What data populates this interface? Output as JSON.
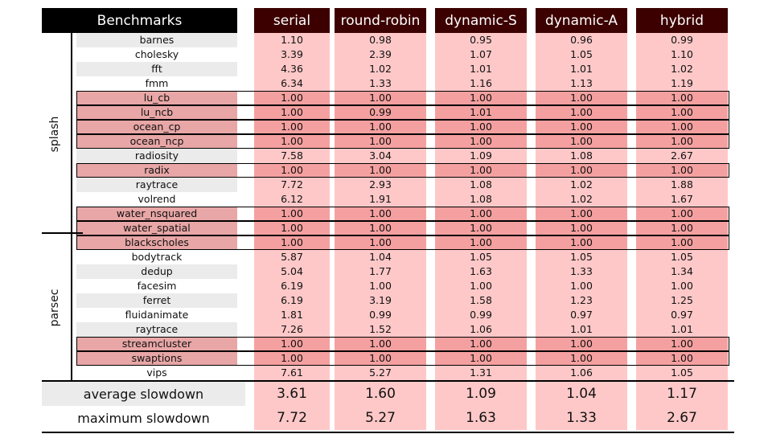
{
  "header": {
    "benchmarks": "Benchmarks",
    "columns": [
      "serial",
      "round-robin",
      "dynamic-S",
      "dynamic-A",
      "hybrid"
    ]
  },
  "groups": [
    {
      "label": "splash"
    },
    {
      "label": "parsec"
    }
  ],
  "rows": [
    {
      "name": "barnes",
      "values": [
        "1.10",
        "0.98",
        "0.95",
        "0.96",
        "0.99"
      ],
      "highlight": false
    },
    {
      "name": "cholesky",
      "values": [
        "3.39",
        "2.39",
        "1.07",
        "1.05",
        "1.10"
      ],
      "highlight": false
    },
    {
      "name": "fft",
      "values": [
        "4.36",
        "1.02",
        "1.01",
        "1.01",
        "1.02"
      ],
      "highlight": false
    },
    {
      "name": "fmm",
      "values": [
        "6.34",
        "1.33",
        "1.16",
        "1.13",
        "1.19"
      ],
      "highlight": false
    },
    {
      "name": "lu_cb",
      "values": [
        "1.00",
        "1.00",
        "1.00",
        "1.00",
        "1.00"
      ],
      "highlight": true
    },
    {
      "name": "lu_ncb",
      "values": [
        "1.00",
        "0.99",
        "1.01",
        "1.00",
        "1.00"
      ],
      "highlight": true
    },
    {
      "name": "ocean_cp",
      "values": [
        "1.00",
        "1.00",
        "1.00",
        "1.00",
        "1.00"
      ],
      "highlight": true
    },
    {
      "name": "ocean_ncp",
      "values": [
        "1.00",
        "1.00",
        "1.00",
        "1.00",
        "1.00"
      ],
      "highlight": true
    },
    {
      "name": "radiosity",
      "values": [
        "7.58",
        "3.04",
        "1.09",
        "1.08",
        "2.67"
      ],
      "highlight": false
    },
    {
      "name": "radix",
      "values": [
        "1.00",
        "1.00",
        "1.00",
        "1.00",
        "1.00"
      ],
      "highlight": true
    },
    {
      "name": "raytrace",
      "values": [
        "7.72",
        "2.93",
        "1.08",
        "1.02",
        "1.88"
      ],
      "highlight": false
    },
    {
      "name": "volrend",
      "values": [
        "6.12",
        "1.91",
        "1.08",
        "1.02",
        "1.67"
      ],
      "highlight": false
    },
    {
      "name": "water_nsquared",
      "values": [
        "1.00",
        "1.00",
        "1.00",
        "1.00",
        "1.00"
      ],
      "highlight": true
    },
    {
      "name": "water_spatial",
      "values": [
        "1.00",
        "1.00",
        "1.00",
        "1.00",
        "1.00"
      ],
      "highlight": true
    },
    {
      "name": "blackscholes",
      "values": [
        "1.00",
        "1.00",
        "1.00",
        "1.00",
        "1.00"
      ],
      "highlight": true
    },
    {
      "name": "bodytrack",
      "values": [
        "5.87",
        "1.04",
        "1.05",
        "1.05",
        "1.05"
      ],
      "highlight": false
    },
    {
      "name": "dedup",
      "values": [
        "5.04",
        "1.77",
        "1.63",
        "1.33",
        "1.34"
      ],
      "highlight": false
    },
    {
      "name": "facesim",
      "values": [
        "6.19",
        "1.00",
        "1.00",
        "1.00",
        "1.00"
      ],
      "highlight": false
    },
    {
      "name": "ferret",
      "values": [
        "6.19",
        "3.19",
        "1.58",
        "1.23",
        "1.25"
      ],
      "highlight": false
    },
    {
      "name": "fluidanimate",
      "values": [
        "1.81",
        "0.99",
        "0.99",
        "0.97",
        "0.97"
      ],
      "highlight": false
    },
    {
      "name": "raytrace",
      "values": [
        "7.26",
        "1.52",
        "1.06",
        "1.01",
        "1.01"
      ],
      "highlight": false
    },
    {
      "name": "streamcluster",
      "values": [
        "1.00",
        "1.00",
        "1.00",
        "1.00",
        "1.00"
      ],
      "highlight": true
    },
    {
      "name": "swaptions",
      "values": [
        "1.00",
        "1.00",
        "1.00",
        "1.00",
        "1.00"
      ],
      "highlight": true
    },
    {
      "name": "vips",
      "values": [
        "7.61",
        "5.27",
        "1.31",
        "1.06",
        "1.05"
      ],
      "highlight": false
    }
  ],
  "summary": [
    {
      "label": "average slowdown",
      "values": [
        "3.61",
        "1.60",
        "1.09",
        "1.04",
        "1.17"
      ]
    },
    {
      "label": "maximum slowdown",
      "values": [
        "7.72",
        "5.27",
        "1.63",
        "1.33",
        "2.67"
      ]
    }
  ],
  "colors": {
    "header_bg": "#000000",
    "column_header_bg": "#3c0000",
    "value_light": "#ffc8c8",
    "value_highlight": "#f5a0a0",
    "name_highlight": "#e8a6a6",
    "band_grey": "#ebebeb"
  }
}
